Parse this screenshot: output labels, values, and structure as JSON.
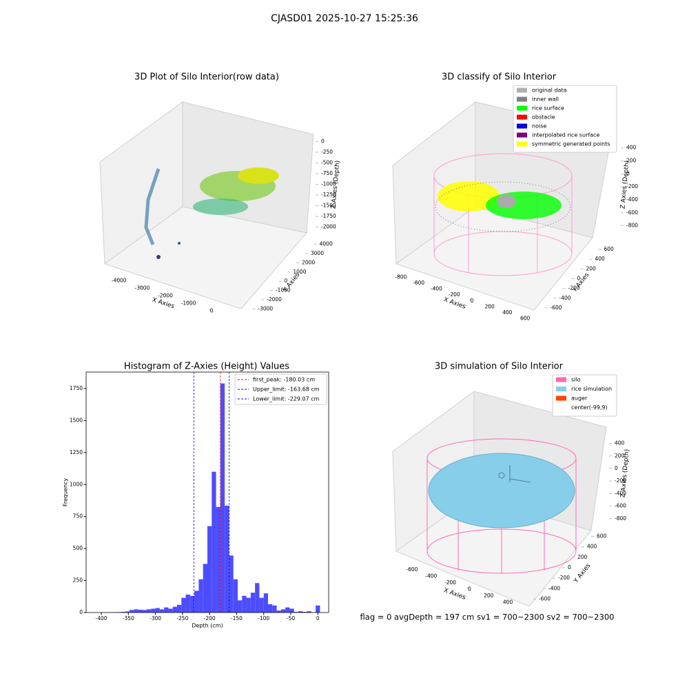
{
  "suptitle": "CJASD01 2025-10-27 15:25:36",
  "footer": "flag = 0     avgDepth = 197 cm  sv1 = 700~2300  sv2 = 700~2300",
  "chart_data": [
    {
      "type": "scatter3d",
      "title": "3D Plot of Silo Interior(row data)",
      "xlabel": "X Axies",
      "ylabel": "Y Axies",
      "zlabel": "Z Axies (Depth)",
      "xlim": [
        -4500,
        500
      ],
      "xticks": [
        -4000,
        -3000,
        -2000,
        -1000,
        0
      ],
      "ylim": [
        -3500,
        4500
      ],
      "yticks": [
        -3000,
        -2000,
        -1000,
        0,
        1000,
        2000,
        3000,
        4000
      ],
      "zlim": [
        -2200,
        150
      ],
      "zticks": [
        0,
        -250,
        -500,
        -750,
        -1000,
        -1250,
        -1500,
        -1750,
        -2000
      ]
    },
    {
      "type": "scatter3d",
      "title": "3D classify of Silo Interior",
      "xlabel": "X Axies",
      "ylabel": "Y Axies",
      "zlabel": "Z Axies (Depth)",
      "xlim": [
        -900,
        700
      ],
      "xticks": [
        -800,
        -600,
        -400,
        -200,
        0,
        200,
        400,
        600
      ],
      "ylim": [
        -700,
        700
      ],
      "yticks": [
        -600,
        -400,
        -200,
        0,
        200,
        400,
        600
      ],
      "zlim": [
        -900,
        450
      ],
      "zticks": [
        400,
        200,
        0,
        -200,
        -400,
        -600,
        -800
      ],
      "legend": [
        {
          "name": "original data",
          "color": "#b0b0b0"
        },
        {
          "name": "inner wall",
          "color": "#808080"
        },
        {
          "name": "rice surface",
          "color": "#00ff00"
        },
        {
          "name": "obstacle",
          "color": "#ff0000"
        },
        {
          "name": "noise",
          "color": "#0000dd"
        },
        {
          "name": "interpolated rice surface",
          "color": "#800080"
        },
        {
          "name": "symmetric generated points",
          "color": "#ffff00"
        }
      ]
    },
    {
      "type": "histogram",
      "title": "Histogram of Z-Axies (Height) Values",
      "xlabel": "Depth (cm)",
      "ylabel": "Frequency",
      "color": "#4d4dff",
      "bins": [
        -380,
        -372,
        -364,
        -356,
        -348,
        -340,
        -332,
        -324,
        -316,
        -308,
        -300,
        -292,
        -284,
        -276,
        -268,
        -260,
        -252,
        -244,
        -236,
        -228,
        -220,
        -212,
        -204,
        -196,
        -188,
        -180,
        -172,
        -164,
        -156,
        -148,
        -140,
        -132,
        -124,
        -116,
        -108,
        -100,
        -92,
        -84,
        -76,
        -68,
        -60,
        -52,
        -44,
        -36,
        -28,
        -20,
        -12,
        -4,
        4
      ],
      "counts": [
        2,
        3,
        5,
        8,
        20,
        25,
        22,
        20,
        25,
        30,
        35,
        25,
        40,
        30,
        45,
        60,
        115,
        140,
        130,
        170,
        260,
        380,
        675,
        1100,
        825,
        1790,
        835,
        445,
        260,
        95,
        130,
        115,
        155,
        230,
        115,
        150,
        65,
        55,
        15,
        25,
        40,
        30,
        5,
        10,
        5,
        10,
        2,
        55
      ],
      "xlim": [
        -428,
        20
      ],
      "xticks": [
        -400,
        -350,
        -300,
        -250,
        -200,
        -150,
        -100,
        -50,
        0
      ],
      "ylim": [
        0,
        1879
      ],
      "yticks": [
        0,
        250,
        500,
        750,
        1000,
        1250,
        1500,
        1750
      ],
      "annotations": [
        {
          "label": "first_peak: -180.03 cm",
          "value": -180.03,
          "color": "#ff0000"
        },
        {
          "label": "Upper_limit: -163.68 cm",
          "value": -163.68,
          "color": "#0000ff"
        },
        {
          "label": "Lower_limit: -229.07 cm",
          "value": -229.07,
          "color": "#0000ff"
        }
      ]
    },
    {
      "type": "surface3d",
      "title": "3D simulation of Silo Interior",
      "xlabel": "X Axies",
      "ylabel": "Y Axies",
      "zlabel": "Z Axies (Depth)",
      "xlim": [
        -700,
        500
      ],
      "xticks": [
        -600,
        -400,
        -200,
        0,
        200,
        400
      ],
      "ylim": [
        -700,
        700
      ],
      "yticks": [
        -600,
        -400,
        -200,
        0,
        200,
        400,
        600
      ],
      "zlim": [
        -900,
        450
      ],
      "zticks": [
        400,
        200,
        0,
        -200,
        -400,
        -600,
        -800
      ],
      "legend": [
        {
          "name": "silo",
          "color": "#ff69b4"
        },
        {
          "name": "rice simulation",
          "color": "#87ceeb"
        },
        {
          "name": "auger",
          "color": "#ff4500"
        },
        {
          "name": "center(-99,9)",
          "color": "#ffffff"
        }
      ]
    }
  ]
}
